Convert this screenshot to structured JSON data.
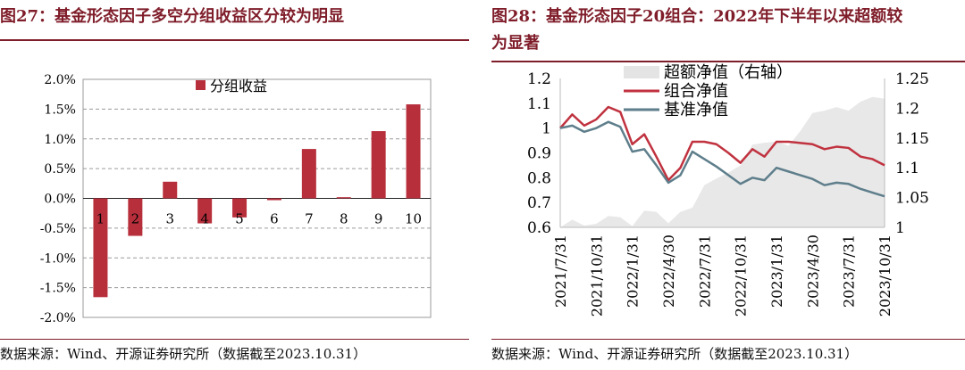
{
  "left": {
    "title": "图27：基金形态因子多空分组收益区分较为明显",
    "source": "数据来源：Wind、开源证券研究所（数据截至2023.10.31）",
    "chart_data": {
      "type": "bar",
      "categories": [
        "1",
        "2",
        "3",
        "4",
        "5",
        "6",
        "7",
        "8",
        "9",
        "10"
      ],
      "series": [
        {
          "name": "分组收益",
          "values": [
            -1.66,
            -0.63,
            0.28,
            -0.42,
            -0.32,
            -0.03,
            0.83,
            0.02,
            1.13,
            1.58
          ],
          "color": "#b82f3c"
        }
      ],
      "y_ticks": [
        "2.0%",
        "1.5%",
        "1.0%",
        "0.5%",
        "0.0%",
        "-0.5%",
        "-1.0%",
        "-1.5%",
        "-2.0%"
      ],
      "ylim": [
        -2.0,
        2.0
      ],
      "grid": "horizontal dashed",
      "legend_position": "top"
    }
  },
  "right": {
    "title_line1": "图28：基金形态因子20组合：2022年下半年以来超额较",
    "title_line2": "为显著",
    "source": "数据来源：Wind、开源证券研究所（数据截至2023.10.31）",
    "chart_data": {
      "type": "line",
      "x": [
        "2021/7/31",
        "2021/8/31",
        "2021/9/30",
        "2021/10/31",
        "2021/11/30",
        "2021/12/31",
        "2022/1/31",
        "2022/2/28",
        "2022/3/31",
        "2022/4/30",
        "2022/5/31",
        "2022/6/30",
        "2022/7/31",
        "2022/8/31",
        "2022/9/30",
        "2022/10/31",
        "2022/11/30",
        "2022/12/31",
        "2023/1/31",
        "2023/2/28",
        "2023/3/31",
        "2023/4/30",
        "2023/5/31",
        "2023/6/30",
        "2023/7/31",
        "2023/8/31",
        "2023/9/30",
        "2023/10/31"
      ],
      "x_tick_labels": [
        "2021/7/31",
        "2021/10/31",
        "2022/1/31",
        "2022/4/30",
        "2022/7/31",
        "2022/10/31",
        "2023/1/31",
        "2023/4/30",
        "2023/7/31",
        "2023/10/31"
      ],
      "y_left_ticks": [
        "1.2",
        "1.1",
        "1",
        "0.9",
        "0.8",
        "0.7",
        "0.6"
      ],
      "y_right_ticks": [
        "1.25",
        "1.2",
        "1.15",
        "1.1",
        "1.05",
        "1"
      ],
      "ylim_left": [
        0.6,
        1.2
      ],
      "ylim_right": [
        1.0,
        1.25
      ],
      "series": [
        {
          "name": "超额净值（右轴）",
          "type": "area",
          "axis": "right",
          "color": "#e8e8e8",
          "values": [
            1.0,
            1.013,
            1.003,
            1.006,
            1.019,
            1.017,
            1.002,
            1.028,
            1.026,
            1.007,
            1.026,
            1.033,
            1.071,
            1.082,
            1.092,
            1.104,
            1.139,
            1.142,
            1.144,
            1.137,
            1.162,
            1.192,
            1.196,
            1.202,
            1.196,
            1.211,
            1.219,
            1.216
          ]
        },
        {
          "name": "组合净值",
          "type": "line",
          "axis": "left",
          "color": "#c0323f",
          "values": [
            1.0,
            1.055,
            1.01,
            1.035,
            1.085,
            1.065,
            0.935,
            0.975,
            0.885,
            0.79,
            0.84,
            0.945,
            0.945,
            0.935,
            0.9,
            0.86,
            0.915,
            0.885,
            0.945,
            0.945,
            0.94,
            0.935,
            0.915,
            0.925,
            0.92,
            0.885,
            0.875,
            0.85
          ]
        },
        {
          "name": "基准净值",
          "type": "line",
          "axis": "left",
          "color": "#5e7e8b",
          "values": [
            1.0,
            1.01,
            0.985,
            1.0,
            1.025,
            1.005,
            0.905,
            0.915,
            0.85,
            0.78,
            0.81,
            0.905,
            0.875,
            0.845,
            0.81,
            0.775,
            0.8,
            0.79,
            0.84,
            0.825,
            0.81,
            0.795,
            0.77,
            0.78,
            0.775,
            0.755,
            0.74,
            0.725
          ]
        }
      ],
      "grid": "none",
      "legend_position": "top-left-inside"
    }
  }
}
